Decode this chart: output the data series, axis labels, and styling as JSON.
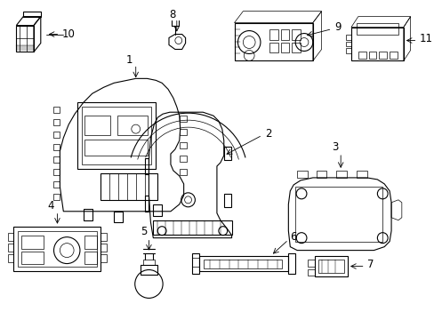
{
  "bg_color": "#ffffff",
  "line_color": "#000000",
  "fig_width": 4.89,
  "fig_height": 3.6,
  "dpi": 100,
  "lw_main": 0.8,
  "lw_detail": 0.5,
  "lw_thin": 0.35
}
